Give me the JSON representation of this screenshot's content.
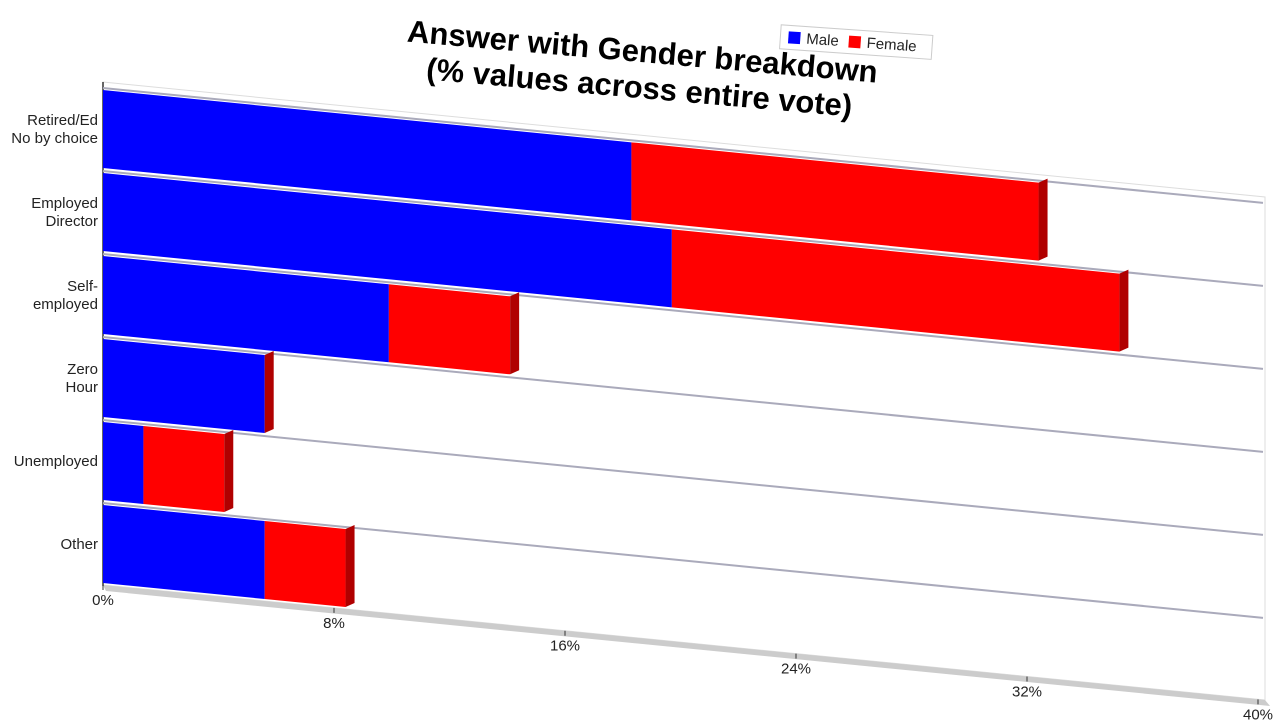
{
  "chart_data": {
    "type": "stacked-bar-horizontal",
    "title": "Answer with Gender breakdown\n(% values across entire vote)",
    "categories": [
      "Retired/Ed\nNo by choice",
      "Employed\nDirector",
      "Self-\nemployed",
      "Zero\nHour",
      "Unemployed",
      "Other"
    ],
    "series": [
      {
        "name": "Male",
        "color": "#0000ff",
        "values": [
          18.3,
          19.7,
          9.9,
          5.6,
          1.4,
          5.6
        ]
      },
      {
        "name": "Female",
        "color": "#ff0000",
        "values": [
          14.1,
          15.5,
          4.2,
          0,
          2.8,
          2.8
        ]
      }
    ],
    "xlim": [
      0,
      40
    ],
    "xticks": [
      {
        "value": 0,
        "label": "0%"
      },
      {
        "value": 8,
        "label": "8%"
      },
      {
        "value": 16,
        "label": "16%"
      },
      {
        "value": 24,
        "label": "24%"
      },
      {
        "value": 32,
        "label": "32%"
      },
      {
        "value": 40,
        "label": "40%"
      }
    ],
    "legend": "top-right"
  }
}
